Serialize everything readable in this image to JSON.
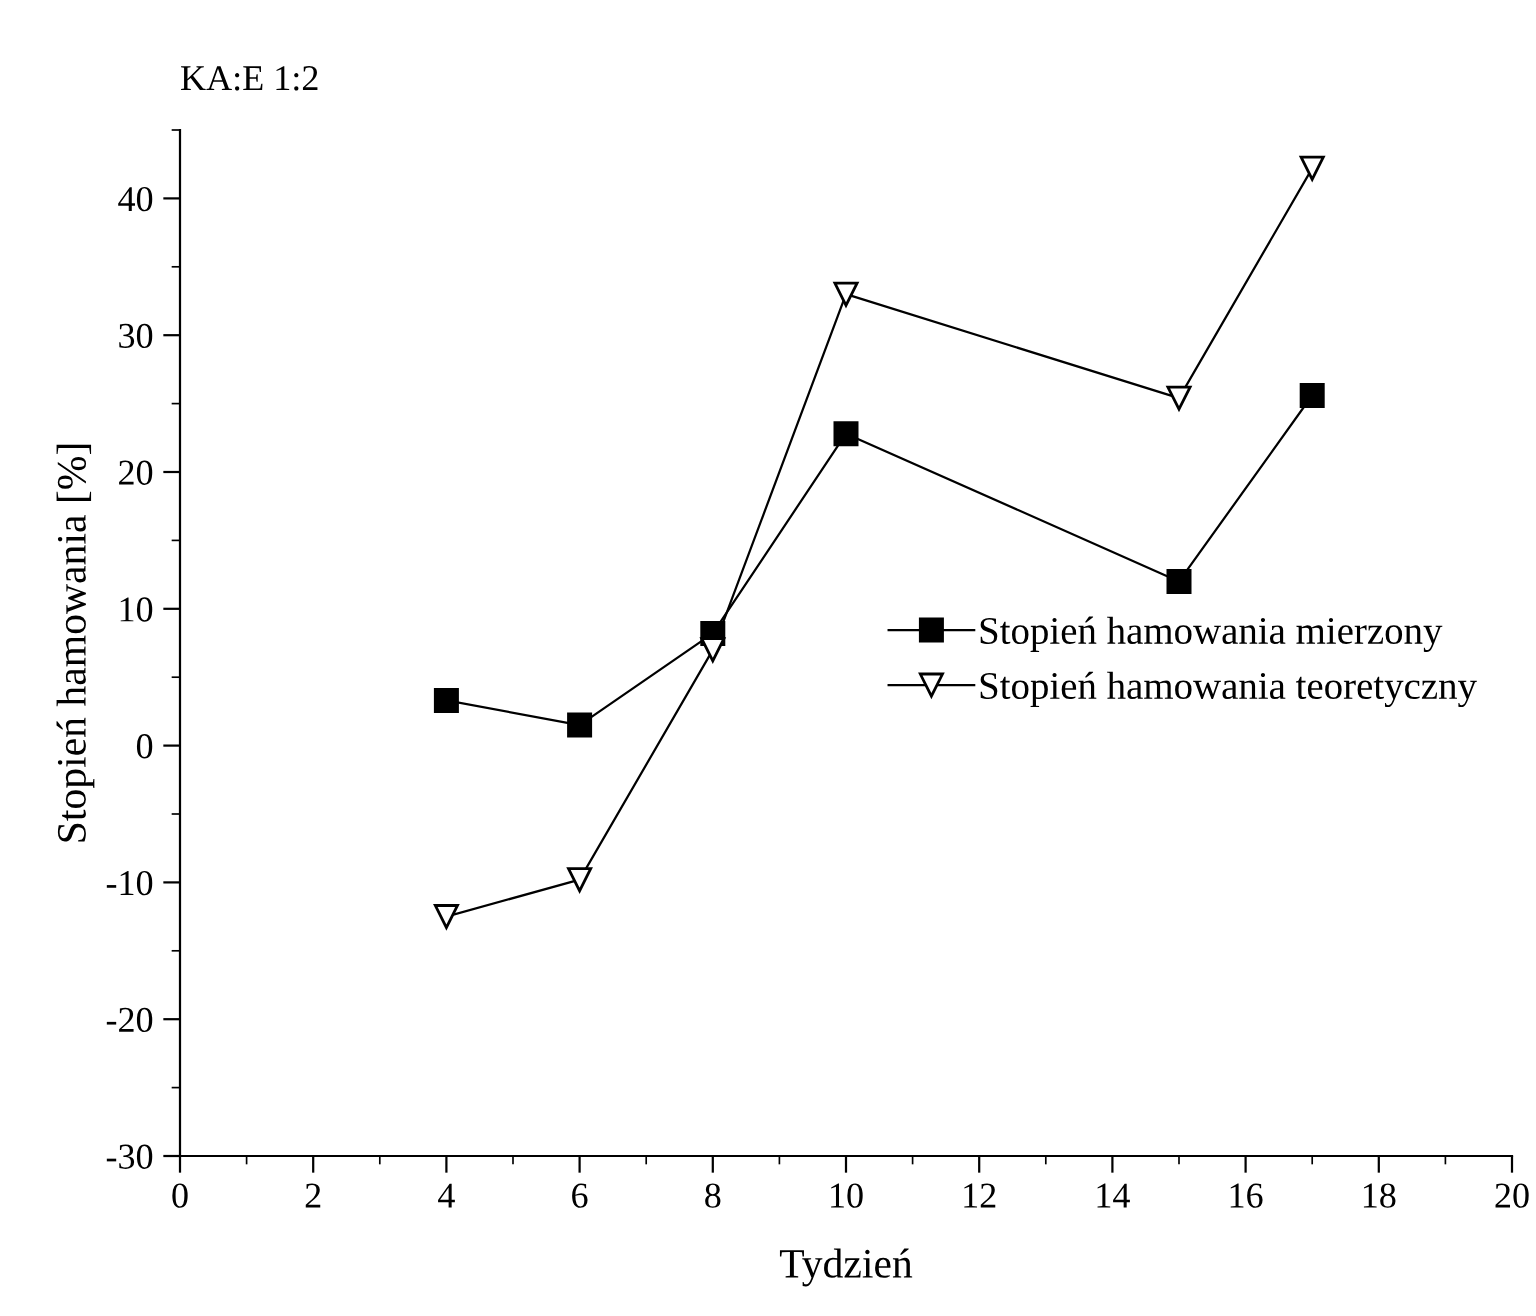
{
  "chart_data": {
    "type": "line",
    "title": "KA:E 1:2",
    "xlabel": "Tydzień",
    "ylabel": "Stopień hamowania [%]",
    "x": [
      4,
      6,
      8,
      10,
      15,
      17
    ],
    "series": [
      {
        "name": "Stopień hamowania mierzony",
        "color": "#000000",
        "marker": "square",
        "values": [
          3.3,
          1.5,
          8.2,
          22.8,
          12.0,
          25.6
        ]
      },
      {
        "name": "Stopień hamowania teoretyczny",
        "color": "#000000",
        "marker": "triangle_down",
        "values": [
          -12.5,
          -9.8,
          7.0,
          33.0,
          25.4,
          42.2
        ]
      }
    ],
    "xlim": [
      0,
      20
    ],
    "xticks": [
      0,
      2,
      4,
      6,
      8,
      10,
      12,
      14,
      16,
      18,
      20
    ],
    "ylim": [
      -30,
      45
    ],
    "yticks": [
      -30,
      -20,
      -10,
      0,
      10,
      20,
      30,
      40
    ],
    "grid": false,
    "legend": "right",
    "line_style": "solid"
  }
}
